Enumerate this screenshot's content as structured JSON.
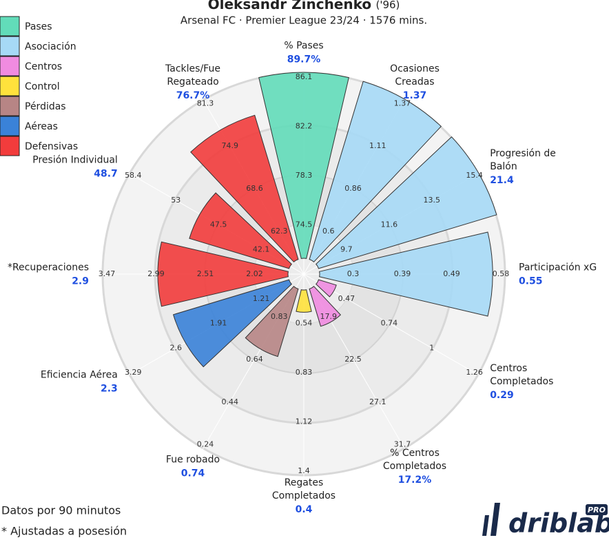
{
  "chart_data": {
    "type": "polar_bar",
    "title": "Oleksandr Zinchenko",
    "title_suffix": "('96)",
    "subtitle": "Arsenal FC · Premier League 23/24 · 1576 mins.",
    "rlim": [
      0,
      100
    ],
    "groups": [
      {
        "name": "Pases",
        "color": "#62dcb9"
      },
      {
        "name": "Asociación",
        "color": "#a6d9f6"
      },
      {
        "name": "Centros",
        "color": "#f08be0"
      },
      {
        "name": "Control",
        "color": "#ffe23c"
      },
      {
        "name": "Pérdidas",
        "color": "#b78585"
      },
      {
        "name": "Aéreas",
        "color": "#3a82d8"
      },
      {
        "name": "Defensivas",
        "color": "#f23c3c"
      }
    ],
    "slices": [
      {
        "label": [
          "% Pases"
        ],
        "value": 89.7,
        "value_label": "89.7%",
        "group": 0,
        "bar": 100,
        "ticks": [
          74.5,
          78.3,
          82.2,
          86.1
        ]
      },
      {
        "label": [
          "Ocasiones",
          "Creadas"
        ],
        "value": 1.37,
        "group": 1,
        "bar": 100,
        "ticks": [
          0.6,
          0.86,
          1.11,
          1.37
        ]
      },
      {
        "label": [
          "Progresión de",
          "Balón"
        ],
        "value": 21.4,
        "group": 1,
        "bar": 100,
        "ticks": [
          9.7,
          11.6,
          13.5,
          15.4
        ]
      },
      {
        "label": [
          "Participación xG"
        ],
        "value": 0.55,
        "group": 1,
        "bar": 93,
        "ticks": [
          0.3,
          0.39,
          0.49,
          0.58
        ]
      },
      {
        "label": [
          "Centros",
          "Completados"
        ],
        "value": 0.29,
        "group": 2,
        "bar": 10,
        "ticks": [
          0.47,
          0.74,
          1,
          1.26
        ]
      },
      {
        "label": [
          "% Centros",
          "Completados"
        ],
        "value": 17.2,
        "value_label": "17.2%",
        "group": 2,
        "bar": 21,
        "ticks": [
          17.9,
          22.5,
          27.1,
          31.7
        ]
      },
      {
        "label": [
          "Regates",
          "Completados"
        ],
        "value": 0.4,
        "group": 3,
        "bar": 12,
        "ticks": [
          0.54,
          0.83,
          1.12,
          1.4
        ]
      },
      {
        "label": [
          "Fue robado"
        ],
        "value": 0.74,
        "group": 4,
        "bar": 38,
        "ticks": [
          0.83,
          0.64,
          0.44,
          0.24
        ]
      },
      {
        "label": [
          "Eficiencia Aérea"
        ],
        "value": 2.3,
        "group": 5,
        "bar": 65,
        "ticks": [
          1.21,
          1.91,
          2.6,
          3.29
        ]
      },
      {
        "label": [
          "*Recuperaciones"
        ],
        "value": 2.9,
        "group": 6,
        "bar": 70,
        "ticks": [
          2.02,
          2.51,
          2.99,
          3.47
        ]
      },
      {
        "label": [
          "Presión Individual"
        ],
        "value": 48.7,
        "group": 6,
        "bar": 56,
        "ticks": [
          42.1,
          47.5,
          53,
          58.4
        ]
      },
      {
        "label": [
          "Tackles/Fue",
          "Regateado"
        ],
        "value": 76.7,
        "value_label": "76.7%",
        "group": 6,
        "bar": 81,
        "ticks": [
          62.3,
          68.6,
          74.9,
          81.3
        ]
      }
    ]
  },
  "notes": [
    "Datos por 90 minutos",
    "* Ajustadas a posesión"
  ],
  "logo": {
    "text": "driblab",
    "badge": "PRO"
  }
}
